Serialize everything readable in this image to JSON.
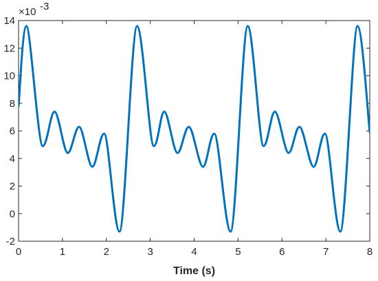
{
  "chart_data": {
    "type": "line",
    "title": "",
    "xlabel": "Time (s)",
    "ylabel": "",
    "y_exponent_label": "×10",
    "y_exponent_power": "-3",
    "xlim": [
      0,
      8
    ],
    "ylim": [
      -2,
      14
    ],
    "x_ticks": [
      0,
      1,
      2,
      3,
      4,
      5,
      6,
      7,
      8
    ],
    "y_ticks": [
      -2,
      0,
      2,
      4,
      6,
      8,
      10,
      12,
      14
    ],
    "grid": false,
    "legend": "none",
    "series": [
      {
        "color": "#0072BD",
        "x": [
          0.0,
          0.18,
          0.55,
          0.82,
          1.12,
          1.38,
          1.68,
          1.95,
          2.3,
          2.7,
          3.08,
          3.32,
          3.62,
          3.88,
          4.2,
          4.46,
          4.83,
          5.22,
          5.58,
          5.84,
          6.15,
          6.4,
          6.72,
          6.98,
          7.33,
          7.72,
          8.0
        ],
        "values": [
          7.8,
          13.6,
          4.9,
          7.4,
          4.4,
          6.3,
          3.4,
          5.8,
          -1.3,
          13.6,
          4.9,
          7.4,
          4.4,
          6.3,
          3.4,
          5.8,
          -1.3,
          13.6,
          4.9,
          7.4,
          4.4,
          6.3,
          3.4,
          5.8,
          -1.3,
          13.6,
          5.9
        ]
      }
    ]
  }
}
